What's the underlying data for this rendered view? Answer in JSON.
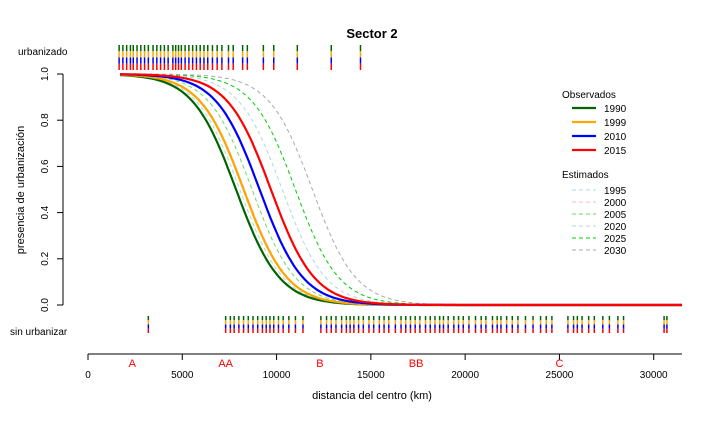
{
  "chart_data": {
    "type": "line",
    "title": "Sector 2",
    "xlabel": "distancia del centro (km)",
    "ylabel": "presencia de urbanización",
    "xlim": [
      0,
      31500
    ],
    "ylim": [
      0,
      1
    ],
    "x_ticks": [
      0,
      5000,
      10000,
      15000,
      20000,
      25000,
      30000
    ],
    "y_ticks": [
      "0.0",
      "0.2",
      "0.4",
      "0.6",
      "0.8",
      "1.0"
    ],
    "rug_labels": {
      "top": "urbanizado",
      "bottom": "sin urbanizar"
    },
    "grid": false,
    "legend_position": "right",
    "legend_titles": {
      "observed": "Observados",
      "estimated": "Estimados"
    },
    "series": [
      {
        "name": "1990",
        "group": "observed",
        "color": "#006400",
        "dash": "solid",
        "midpoint": 7850,
        "scale": 1150
      },
      {
        "name": "1999",
        "group": "observed",
        "color": "#FFA500",
        "dash": "solid",
        "midpoint": 8250,
        "scale": 1150
      },
      {
        "name": "2010",
        "group": "observed",
        "color": "#0000FF",
        "dash": "solid",
        "midpoint": 9100,
        "scale": 1150
      },
      {
        "name": "2015",
        "group": "observed",
        "color": "#FF0000",
        "dash": "solid",
        "midpoint": 9700,
        "scale": 1150
      },
      {
        "name": "1995",
        "group": "estimated",
        "color": "#ADD8E6",
        "dash": "dashed",
        "midpoint": 8050,
        "scale": 1150
      },
      {
        "name": "2000",
        "group": "estimated",
        "color": "#FFB6C1",
        "dash": "dashed",
        "midpoint": 8300,
        "scale": 1150
      },
      {
        "name": "2005",
        "group": "estimated",
        "color": "#66DD66",
        "dash": "dashed",
        "midpoint": 8700,
        "scale": 1150
      },
      {
        "name": "2020",
        "group": "estimated",
        "color": "#ADD8E6",
        "dash": "dashed",
        "midpoint": 10300,
        "scale": 1150
      },
      {
        "name": "2025",
        "group": "estimated",
        "color": "#00CC00",
        "dash": "dashed",
        "midpoint": 11000,
        "scale": 1150
      },
      {
        "name": "2030",
        "group": "estimated",
        "color": "#A9A9A9",
        "dash": "dashed",
        "midpoint": 11900,
        "scale": 1150
      }
    ],
    "urbanized_rug": [
      1650,
      1850,
      2050,
      2250,
      2400,
      2600,
      2800,
      3000,
      3200,
      3450,
      3650,
      3850,
      4050,
      4250,
      4500,
      4650,
      4800,
      4950,
      5150,
      5350,
      5550,
      5750,
      5950,
      6150,
      6350,
      6600,
      6850,
      7100,
      7450,
      7700,
      8200,
      8450,
      9300,
      9850,
      11100,
      12900,
      14450
    ],
    "unurbanized_rug": [
      3200,
      7300,
      7550,
      7750,
      8000,
      8250,
      8500,
      8750,
      9000,
      9250,
      9450,
      9650,
      9850,
      10100,
      10350,
      10650,
      11000,
      11400,
      12350,
      12650,
      12900,
      13150,
      13450,
      13700,
      13900,
      14100,
      14350,
      14600,
      14900,
      15150,
      15450,
      15700,
      15950,
      16300,
      16600,
      16850,
      17100,
      17350,
      17600,
      17900,
      18150,
      18400,
      18650,
      18850,
      19100,
      19400,
      19650,
      19900,
      20200,
      20550,
      20850,
      21100,
      21450,
      21700,
      21900,
      22200,
      22500,
      22800,
      23200,
      23600,
      24000,
      24300,
      24600,
      25450,
      25750,
      25950,
      26200,
      26550,
      26850,
      27300,
      27650,
      28100,
      28400,
      30550,
      30700
    ],
    "zone_labels": [
      {
        "label": "A",
        "x": 2350
      },
      {
        "label": "AA",
        "x": 7300
      },
      {
        "label": "B",
        "x": 12300
      },
      {
        "label": "BB",
        "x": 17400
      },
      {
        "label": "C",
        "x": 25000
      }
    ],
    "zone_color": "#FF0000"
  }
}
